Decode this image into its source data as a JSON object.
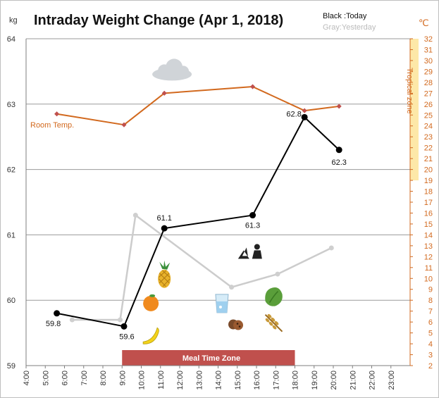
{
  "chart_data": {
    "type": "line",
    "title": "Intraday Weight Change (Apr 1, 2018)",
    "legend": {
      "today": "Black :Today",
      "yesterday": "Gray:Yesterday",
      "placement": "top-right"
    },
    "y_left": {
      "unit": "kg",
      "range": [
        59,
        64
      ],
      "ticks": [
        "59",
        "60",
        "61",
        "62",
        "63",
        "64"
      ]
    },
    "y_right": {
      "unit": "℃",
      "range": [
        2,
        32
      ],
      "ticks": [
        "2",
        "3",
        "4",
        "5",
        "6",
        "7",
        "8",
        "9",
        "10",
        "11",
        "12",
        "13",
        "14",
        "15",
        "16",
        "17",
        "18",
        "19",
        "20",
        "21",
        "22",
        "23",
        "24",
        "25",
        "26",
        "27",
        "28",
        "29",
        "30",
        "31",
        "32"
      ]
    },
    "x_axis": {
      "range": [
        4,
        24
      ],
      "tick_labels": [
        "4:00",
        "5:00",
        "6:00",
        "7:00",
        "8:00",
        "9:00",
        "10:00",
        "11:00",
        "12:00",
        "13:00",
        "14:00",
        "15:00",
        "16:00",
        "17:00",
        "18:00",
        "19:00",
        "20:00",
        "21:00",
        "22:00",
        "23:00"
      ]
    },
    "grid": true,
    "tropical_zone": {
      "label": "Tropical zone",
      "range": [
        19,
        32
      ],
      "color": "#fde8a8"
    },
    "meal_zone": {
      "label": "Meal Time Zone",
      "start": 9,
      "end": 18,
      "color": "#c0504d"
    },
    "series": [
      {
        "name": "Today",
        "axis": "left",
        "color": "#000000",
        "x": [
          5.6,
          9.1,
          11.2,
          15.8,
          18.5,
          20.3
        ],
        "y": [
          59.8,
          59.6,
          61.1,
          61.3,
          62.8,
          62.3
        ],
        "labels": [
          "59.8",
          "59.6",
          "61.1",
          "61.3",
          "62.8",
          "62.3"
        ]
      },
      {
        "name": "Yesterday",
        "axis": "left",
        "color": "#cccccc",
        "x": [
          6.4,
          8.9,
          9.7,
          14.7,
          17.1,
          19.9
        ],
        "y": [
          59.7,
          59.7,
          61.3,
          60.2,
          60.4,
          60.8
        ]
      },
      {
        "name": "Room Temp.",
        "axis": "right",
        "color": "#d2691e",
        "x": [
          5.6,
          9.1,
          11.2,
          15.8,
          18.5,
          20.3
        ],
        "y": [
          25.1,
          24.1,
          27.0,
          27.6,
          25.4,
          25.8
        ]
      }
    ],
    "icons": [
      {
        "name": "cloud-icon",
        "x": 11.6,
        "y": 63.5
      },
      {
        "name": "pineapple-icon",
        "x": 11.2,
        "y": 60.35
      },
      {
        "name": "orange-icon",
        "x": 10.5,
        "y": 59.95
      },
      {
        "name": "banana-icon",
        "x": 10.5,
        "y": 59.45
      },
      {
        "name": "water-glass-icon",
        "x": 14.2,
        "y": 59.95
      },
      {
        "name": "cookies-icon",
        "x": 14.9,
        "y": 59.63
      },
      {
        "name": "gardening-icon",
        "x": 15.7,
        "y": 60.72
      },
      {
        "name": "lettuce-icon",
        "x": 16.9,
        "y": 60.05
      },
      {
        "name": "wheat-icon",
        "x": 16.9,
        "y": 59.65
      }
    ]
  }
}
